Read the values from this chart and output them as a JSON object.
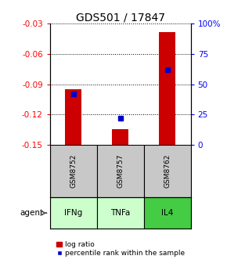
{
  "title": "GDS501 / 17847",
  "samples": [
    "GSM8752",
    "GSM8757",
    "GSM8762"
  ],
  "agents": [
    "IFNg",
    "TNFa",
    "IL4"
  ],
  "log_ratios": [
    -0.095,
    -0.135,
    -0.038
  ],
  "percentile_ranks": [
    42,
    22,
    62
  ],
  "ylim_left": [
    -0.15,
    -0.03
  ],
  "ylim_right": [
    0,
    100
  ],
  "yticks_left": [
    -0.15,
    -0.12,
    -0.09,
    -0.06,
    -0.03
  ],
  "yticks_right": [
    0,
    25,
    50,
    75,
    100
  ],
  "bar_bottom": -0.15,
  "bar_color": "#cc0000",
  "percentile_color": "#0000cc",
  "agent_colors": [
    "#ccffcc",
    "#ccffcc",
    "#44cc44"
  ],
  "sample_bg": "#c8c8c8",
  "title_fontsize": 10,
  "tick_fontsize": 7.5,
  "legend_fontsize": 6.5,
  "bar_width": 0.35
}
